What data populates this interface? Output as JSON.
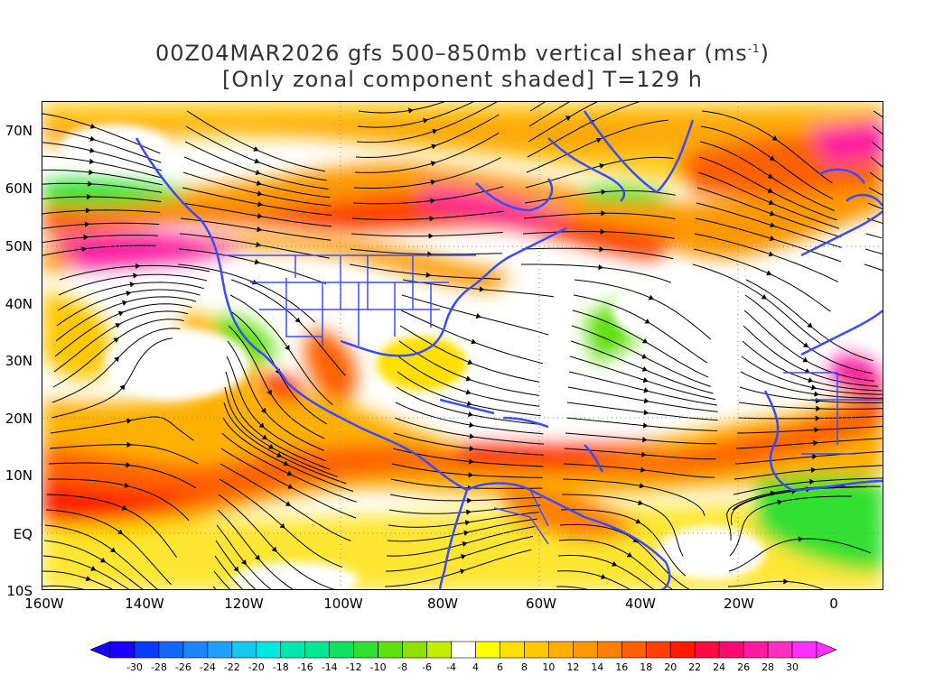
{
  "title": {
    "line1_prefix": "00Z04MAR2026 gfs 500–850mb vertical shear (ms",
    "line1_sup": "-1",
    "line1_suffix": ")",
    "line2": "[Only zonal component shaded] T=129 h"
  },
  "axes": {
    "lat_labels": [
      "70N",
      "60N",
      "50N",
      "40N",
      "30N",
      "20N",
      "10N",
      "EQ",
      "10S"
    ],
    "lon_labels": [
      "160W",
      "140W",
      "120W",
      "100W",
      "80W",
      "60W",
      "40W",
      "20W",
      "0"
    ]
  },
  "colorbar": {
    "labels": [
      "-30",
      "-28",
      "-26",
      "-24",
      "-22",
      "-20",
      "-18",
      "-16",
      "-14",
      "-12",
      "-10",
      "-8",
      "-6",
      "-4",
      "4",
      "6",
      "8",
      "10",
      "12",
      "14",
      "16",
      "18",
      "20",
      "22",
      "24",
      "26",
      "28",
      "30"
    ],
    "colors": [
      "#1a00ff",
      "#0a3cff",
      "#1565ff",
      "#1e85ff",
      "#1fa0ff",
      "#16c8f0",
      "#00e8e0",
      "#00e8b0",
      "#00e890",
      "#10e060",
      "#30e030",
      "#60e010",
      "#90e000",
      "#c0f000",
      "#ffffff",
      "#ffff00",
      "#ffe000",
      "#ffc800",
      "#ffb000",
      "#ff9800",
      "#ff8000",
      "#ff6000",
      "#ff4000",
      "#ff1a00",
      "#ff0a40",
      "#ff0a70",
      "#ff1aa0",
      "#ff30c0",
      "#ff30ff"
    ]
  },
  "colors": {
    "coast": "#3a4bff",
    "streamline": "#000000"
  }
}
